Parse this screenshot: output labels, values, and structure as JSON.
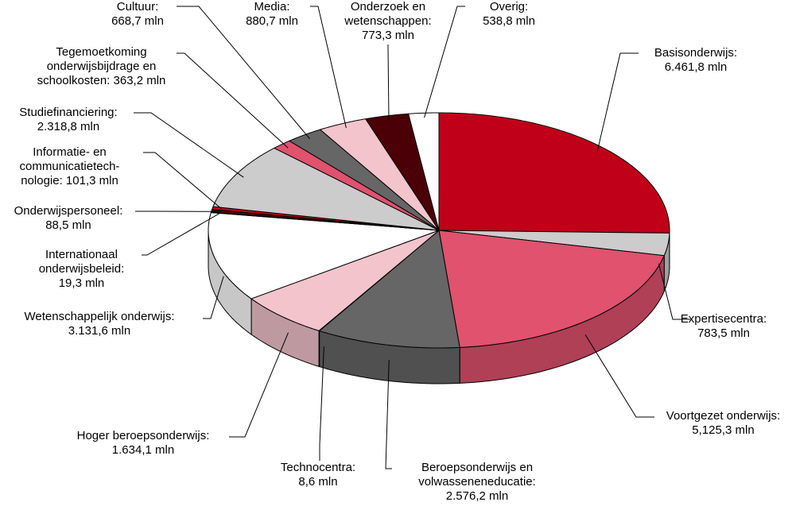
{
  "chart_data": {
    "type": "pie",
    "categories": [
      "Basisonderwijs:",
      "Expertisecentra:",
      "Voortgezet onderwijs:",
      "Beroepsonderwijs en\nvolwasseneneducatie:",
      "Technocentra:",
      "Hoger beroepsonderwijs:",
      "Wetenschappelijk onderwijs:",
      "Internationaal\nonderwijsbeleid:",
      "Onderwijspersoneel:",
      "Informatie- en\ncommunicatietech-\nnologie:",
      "Studiefinanciering:",
      "Tegemoetkoming\nonderwijsbijdrage en\nschoolkosten:",
      "Cultuur:",
      "Media:",
      "Onderzoek en\nwetenschappen:",
      "Overig:"
    ],
    "values": [
      6461.8,
      783.5,
      5125.3,
      2576.2,
      8.6,
      1634.1,
      3131.6,
      19.3,
      88.5,
      101.3,
      2318.8,
      363.2,
      668.7,
      880.7,
      773.3,
      538.8
    ],
    "value_labels": [
      "6.461,8 mln",
      "783,5 mln",
      "5,125,3 mln",
      "2.576,2 mln",
      "8,6 mln",
      "1.634,1 mln",
      "3.131,6 mln",
      "19,3 mln",
      "88,5 mln",
      "101,3 mln",
      "2.318,8 mln",
      "363,2 mln",
      "668,7 mln",
      "880,7 mln",
      "773,3 mln",
      "538,8 mln"
    ],
    "colors": [
      "#c00018",
      "#cccccc",
      "#e0526e",
      "#666666",
      "#111111",
      "#f4c4cd",
      "#ffffff",
      "#e0526e",
      "#5a0008",
      "#c00018",
      "#cccccc",
      "#e0526e",
      "#666666",
      "#f4c4cd",
      "#4a0006",
      "#ffffff"
    ]
  }
}
